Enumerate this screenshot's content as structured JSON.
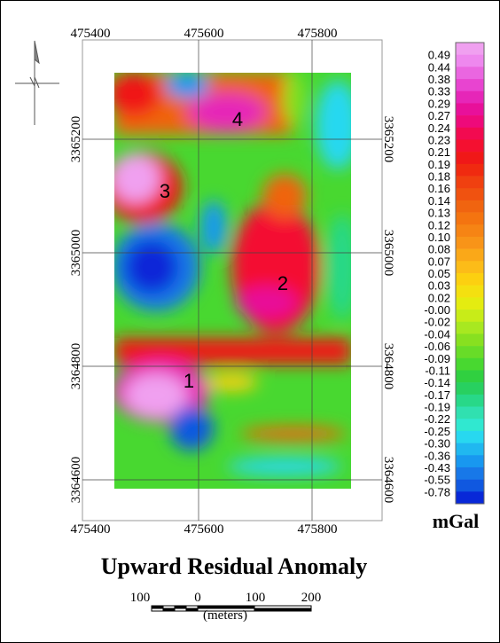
{
  "map": {
    "title": "Upward Residual Anomaly",
    "easting_labels": [
      475400,
      475600,
      475800
    ],
    "northing_labels": [
      3364600,
      3364800,
      3365000,
      3365200
    ],
    "anomalies": [
      "1",
      "2",
      "3",
      "4"
    ],
    "legend": {
      "unit": "mGal",
      "labels": [
        "0.49",
        "0.44",
        "0.38",
        "0.33",
        "0.29",
        "0.27",
        "0.24",
        "0.23",
        "0.21",
        "0.19",
        "0.18",
        "0.16",
        "0.14",
        "0.13",
        "0.12",
        "0.10",
        "0.08",
        "0.07",
        "0.05",
        "0.03",
        "0.02",
        "-0.00",
        "-0.02",
        "-0.04",
        "-0.06",
        "-0.09",
        "-0.11",
        "-0.14",
        "-0.17",
        "-0.19",
        "-0.22",
        "-0.25",
        "-0.30",
        "-0.36",
        "-0.43",
        "-0.55",
        "-0.78"
      ],
      "colors": [
        "#f0a0f0",
        "#ee88ee",
        "#ea66e0",
        "#e844d0",
        "#e626b8",
        "#e8109a",
        "#ee0a7a",
        "#f20a50",
        "#f41030",
        "#f01818",
        "#f02a10",
        "#f04010",
        "#f05210",
        "#f06410",
        "#f47410",
        "#f68414",
        "#f89418",
        "#faa818",
        "#fcbc18",
        "#fcd010",
        "#f4e010",
        "#e4ec10",
        "#c8ec18",
        "#a8e820",
        "#88e020",
        "#68dc28",
        "#48d830",
        "#30d040",
        "#28d060",
        "#28d888",
        "#30e0b0",
        "#30e8d0",
        "#28d8f0",
        "#20b8f0",
        "#1898f0",
        "#1878e8",
        "#1058e0",
        "#0828d8"
      ]
    },
    "scale_bar": {
      "labels": [
        100,
        0,
        100,
        200
      ],
      "unit": "(meters)"
    }
  }
}
